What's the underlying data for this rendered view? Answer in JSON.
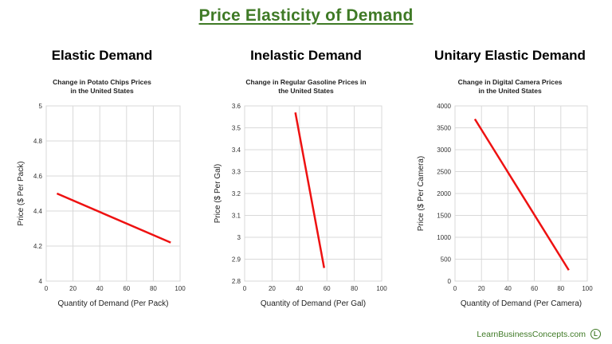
{
  "title": "Price Elasticity of Demand",
  "footer": {
    "text": "LearnBusinessConcepts.com",
    "logo_letter": "L"
  },
  "colors": {
    "title": "#3f7a26",
    "line": "#ee1111",
    "grid": "#d9d9d9"
  },
  "panels": [
    {
      "heading": "Elastic Demand",
      "chart_title_line1": "Change in Potato Chips Prices",
      "chart_title_line2": "in the United States"
    },
    {
      "heading": "Inelastic Demand",
      "chart_title_line1": "Change in Regular Gasoline Prices in",
      "chart_title_line2": "the United States"
    },
    {
      "heading": "Unitary Elastic Demand",
      "chart_title_line1": "Change in Digital Camera Prices",
      "chart_title_line2": "in the United States"
    }
  ],
  "chart_data": [
    {
      "type": "line",
      "title": "Change in Potato Chips Prices in the United States",
      "xlabel": "Quantity of Demand (Per Pack)",
      "ylabel": "Price ($ Per Pack)",
      "xlim": [
        0,
        100
      ],
      "ylim": [
        4,
        5
      ],
      "xticks": [
        0,
        20,
        40,
        60,
        80,
        100
      ],
      "yticks": [
        4,
        4.2,
        4.4,
        4.6,
        4.8,
        5
      ],
      "ytick_labels": [
        "4",
        "4.2",
        "4.4",
        "4.6",
        "4.8",
        "5"
      ],
      "grid": true,
      "series": [
        {
          "x": [
            8,
            93
          ],
          "y": [
            4.5,
            4.22
          ]
        }
      ]
    },
    {
      "type": "line",
      "title": "Change in Regular Gasoline Prices in the United States",
      "xlabel": "Quantity of Demand (Per Gal)",
      "ylabel": "Price ($ Per Gal)",
      "xlim": [
        0,
        100
      ],
      "ylim": [
        2.8,
        3.6
      ],
      "xticks": [
        0,
        20,
        40,
        60,
        80,
        100
      ],
      "yticks": [
        2.8,
        2.9,
        3,
        3.1,
        3.2,
        3.3,
        3.4,
        3.5,
        3.6
      ],
      "ytick_labels": [
        "2.8",
        "2.9",
        "3",
        "3.1",
        "3.2",
        "3.3",
        "3.4",
        "3.5",
        "3.6"
      ],
      "grid": true,
      "series": [
        {
          "x": [
            37,
            58
          ],
          "y": [
            3.57,
            2.86
          ]
        }
      ]
    },
    {
      "type": "line",
      "title": "Change in Digital Camera Prices in the United States",
      "xlabel": "Quantity of Demand (Per Camera)",
      "ylabel": "Price ($ Per Camera)",
      "xlim": [
        0,
        100
      ],
      "ylim": [
        0,
        4000
      ],
      "xticks": [
        0,
        20,
        40,
        60,
        80,
        100
      ],
      "yticks": [
        0,
        500,
        1000,
        1500,
        2000,
        2500,
        3000,
        3500,
        4000
      ],
      "ytick_labels": [
        "0",
        "500",
        "1000",
        "1500",
        "2000",
        "2500",
        "3000",
        "3500",
        "4000"
      ],
      "grid": true,
      "series": [
        {
          "x": [
            15,
            86
          ],
          "y": [
            3700,
            250
          ]
        }
      ]
    }
  ]
}
